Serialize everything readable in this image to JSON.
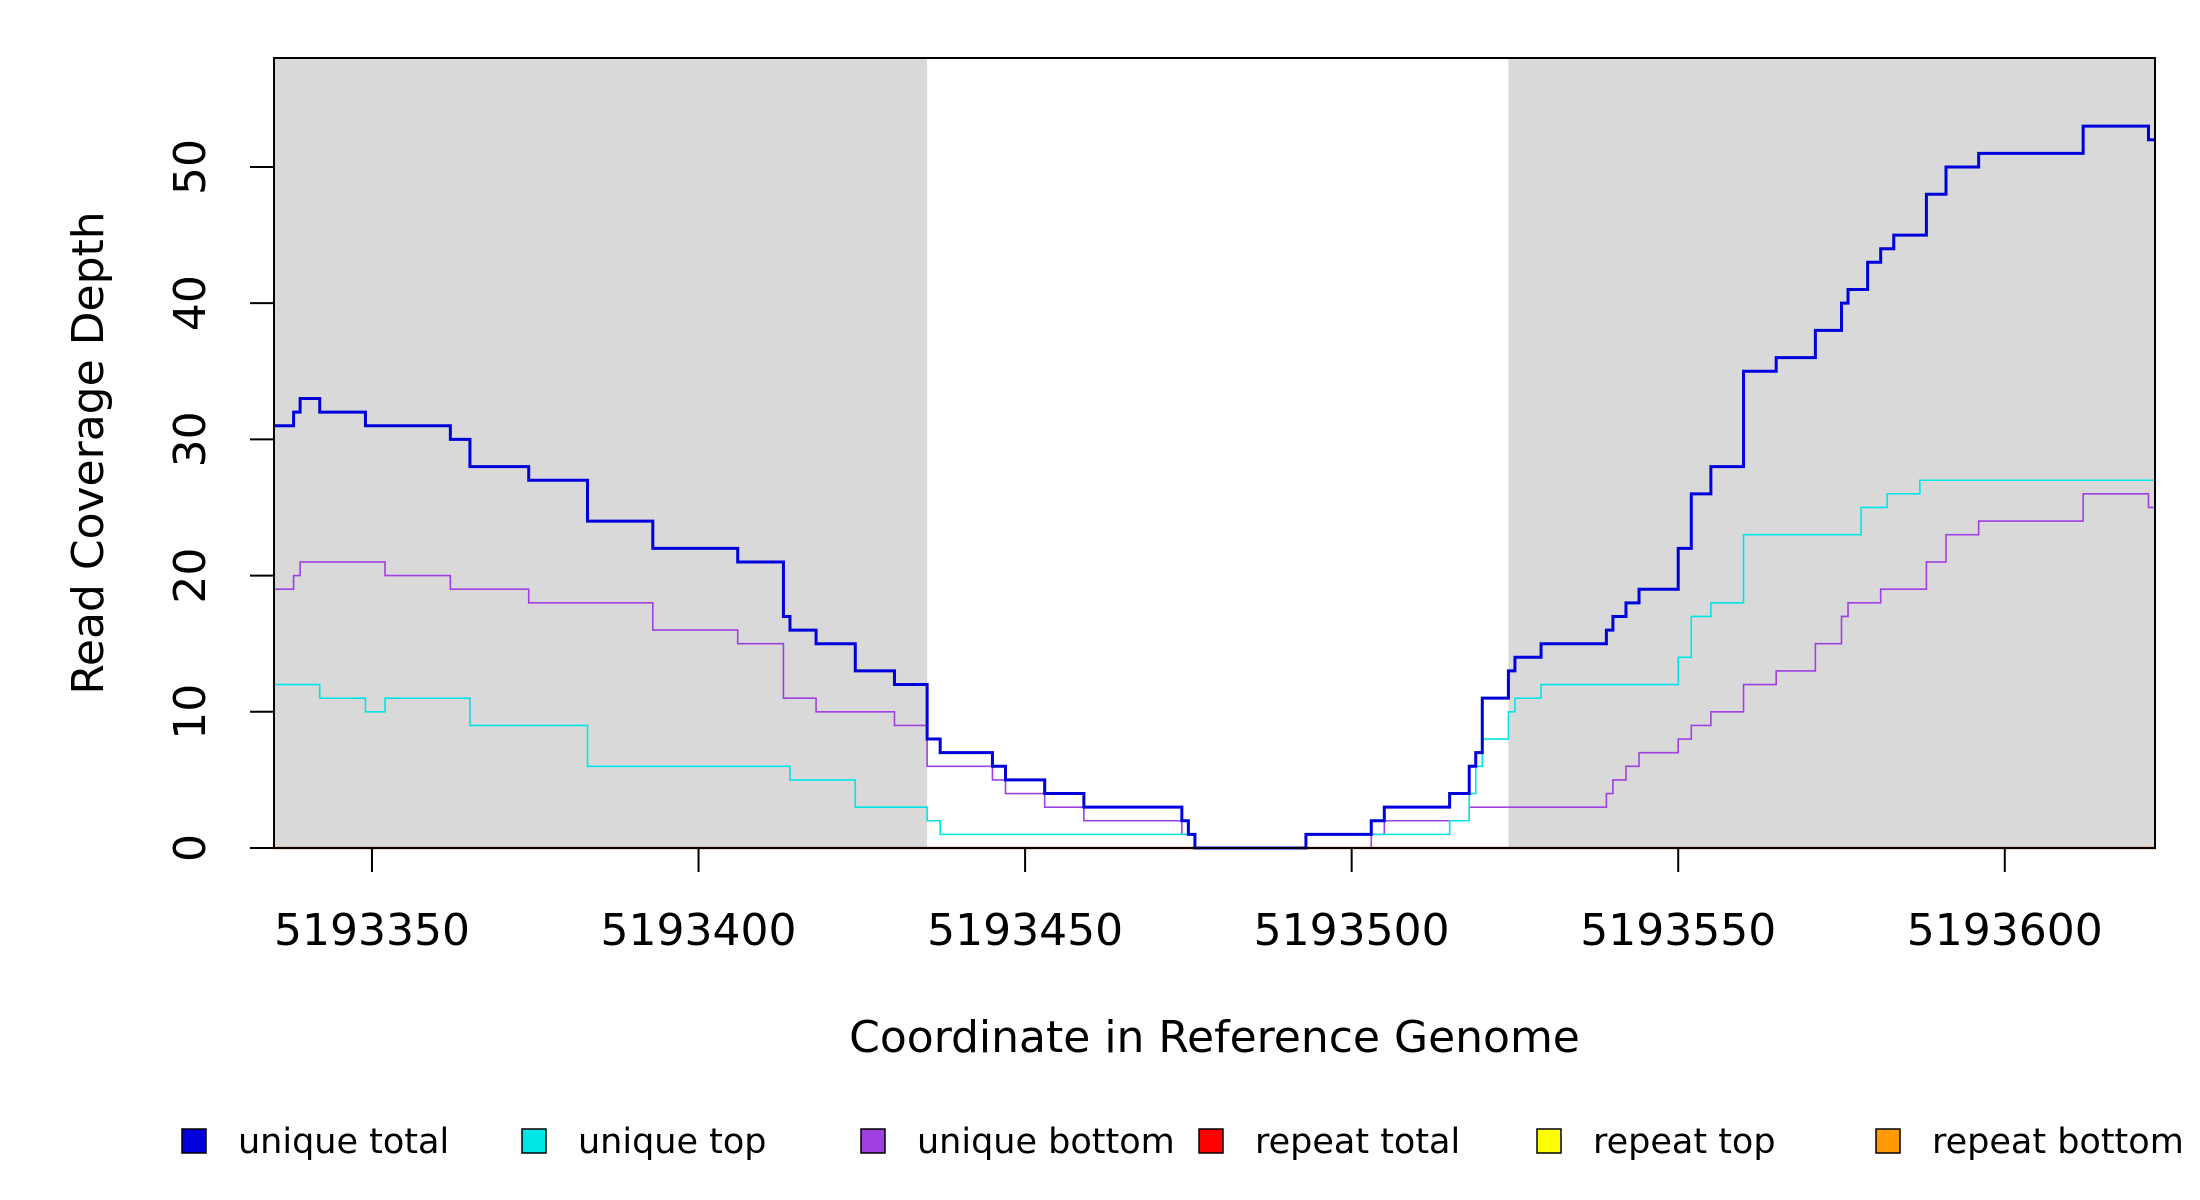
{
  "chart_data": {
    "type": "line",
    "title": "",
    "xlabel": "Coordinate in Reference Genome",
    "ylabel": "Read Coverage Depth",
    "xlim": [
      5193335,
      5193623
    ],
    "ylim": [
      0,
      58
    ],
    "xticks": [
      5193350,
      5193400,
      5193450,
      5193500,
      5193550,
      5193600
    ],
    "yticks": [
      0,
      10,
      20,
      30,
      40,
      50
    ],
    "shaded_regions": [
      [
        5193335,
        5193435
      ],
      [
        5193524,
        5193623
      ]
    ],
    "shade_color": "#d9d9d9",
    "legend_position": "bottom",
    "series": [
      {
        "name": "unique total",
        "color": "#0000dd",
        "points": [
          [
            5193335,
            31
          ],
          [
            5193338,
            32
          ],
          [
            5193339,
            33
          ],
          [
            5193342,
            32
          ],
          [
            5193349,
            31
          ],
          [
            5193362,
            30
          ],
          [
            5193365,
            28
          ],
          [
            5193374,
            27
          ],
          [
            5193383,
            24
          ],
          [
            5193393,
            22
          ],
          [
            5193406,
            21
          ],
          [
            5193413,
            17
          ],
          [
            5193414,
            16
          ],
          [
            5193418,
            15
          ],
          [
            5193424,
            13
          ],
          [
            5193430,
            12
          ],
          [
            5193435,
            8
          ],
          [
            5193437,
            7
          ],
          [
            5193445,
            6
          ],
          [
            5193447,
            5
          ],
          [
            5193453,
            4
          ],
          [
            5193459,
            3
          ],
          [
            5193474,
            2
          ],
          [
            5193475,
            1
          ],
          [
            5193476,
            0
          ],
          [
            5193493,
            1
          ],
          [
            5193503,
            2
          ],
          [
            5193505,
            3
          ],
          [
            5193515,
            4
          ],
          [
            5193518,
            6
          ],
          [
            5193519,
            7
          ],
          [
            5193520,
            11
          ],
          [
            5193524,
            13
          ],
          [
            5193525,
            14
          ],
          [
            5193529,
            15
          ],
          [
            5193539,
            16
          ],
          [
            5193540,
            17
          ],
          [
            5193542,
            18
          ],
          [
            5193544,
            19
          ],
          [
            5193550,
            22
          ],
          [
            5193552,
            26
          ],
          [
            5193555,
            28
          ],
          [
            5193560,
            35
          ],
          [
            5193565,
            36
          ],
          [
            5193571,
            38
          ],
          [
            5193575,
            40
          ],
          [
            5193576,
            41
          ],
          [
            5193579,
            43
          ],
          [
            5193581,
            44
          ],
          [
            5193583,
            45
          ],
          [
            5193588,
            48
          ],
          [
            5193591,
            50
          ],
          [
            5193596,
            51
          ],
          [
            5193612,
            53
          ],
          [
            5193622,
            52
          ],
          [
            5193623,
            52
          ]
        ]
      },
      {
        "name": "unique top",
        "color": "#00e5e5",
        "points": [
          [
            5193335,
            12
          ],
          [
            5193342,
            11
          ],
          [
            5193349,
            10
          ],
          [
            5193352,
            11
          ],
          [
            5193365,
            9
          ],
          [
            5193383,
            6
          ],
          [
            5193414,
            5
          ],
          [
            5193424,
            3
          ],
          [
            5193435,
            2
          ],
          [
            5193437,
            1
          ],
          [
            5193476,
            0
          ],
          [
            5193493,
            1
          ],
          [
            5193515,
            2
          ],
          [
            5193518,
            4
          ],
          [
            5193519,
            6
          ],
          [
            5193520,
            8
          ],
          [
            5193524,
            10
          ],
          [
            5193525,
            11
          ],
          [
            5193529,
            12
          ],
          [
            5193550,
            14
          ],
          [
            5193552,
            17
          ],
          [
            5193555,
            18
          ],
          [
            5193560,
            23
          ],
          [
            5193578,
            25
          ],
          [
            5193582,
            26
          ],
          [
            5193587,
            27
          ],
          [
            5193623,
            27
          ]
        ]
      },
      {
        "name": "unique bottom",
        "color": "#a040e0",
        "points": [
          [
            5193335,
            19
          ],
          [
            5193338,
            20
          ],
          [
            5193339,
            21
          ],
          [
            5193352,
            20
          ],
          [
            5193362,
            19
          ],
          [
            5193374,
            18
          ],
          [
            5193393,
            16
          ],
          [
            5193406,
            15
          ],
          [
            5193413,
            11
          ],
          [
            5193418,
            10
          ],
          [
            5193430,
            9
          ],
          [
            5193435,
            6
          ],
          [
            5193445,
            5
          ],
          [
            5193447,
            4
          ],
          [
            5193453,
            3
          ],
          [
            5193459,
            2
          ],
          [
            5193474,
            1
          ],
          [
            5193476,
            0
          ],
          [
            5193503,
            1
          ],
          [
            5193505,
            2
          ],
          [
            5193518,
            3
          ],
          [
            5193539,
            4
          ],
          [
            5193540,
            5
          ],
          [
            5193542,
            6
          ],
          [
            5193544,
            7
          ],
          [
            5193550,
            8
          ],
          [
            5193552,
            9
          ],
          [
            5193555,
            10
          ],
          [
            5193560,
            12
          ],
          [
            5193565,
            13
          ],
          [
            5193571,
            15
          ],
          [
            5193575,
            17
          ],
          [
            5193576,
            18
          ],
          [
            5193581,
            19
          ],
          [
            5193588,
            21
          ],
          [
            5193591,
            23
          ],
          [
            5193596,
            24
          ],
          [
            5193612,
            26
          ],
          [
            5193622,
            25
          ],
          [
            5193623,
            25
          ]
        ]
      },
      {
        "name": "repeat total",
        "color": "#ff0000",
        "points": [
          [
            5193335,
            0
          ],
          [
            5193623,
            0
          ]
        ]
      },
      {
        "name": "repeat top",
        "color": "#ffff00",
        "points": [
          [
            5193335,
            0
          ],
          [
            5193623,
            0
          ]
        ]
      },
      {
        "name": "repeat bottom",
        "color": "#ff9900",
        "points": [
          [
            5193335,
            0
          ],
          [
            5193623,
            0
          ]
        ]
      }
    ]
  }
}
